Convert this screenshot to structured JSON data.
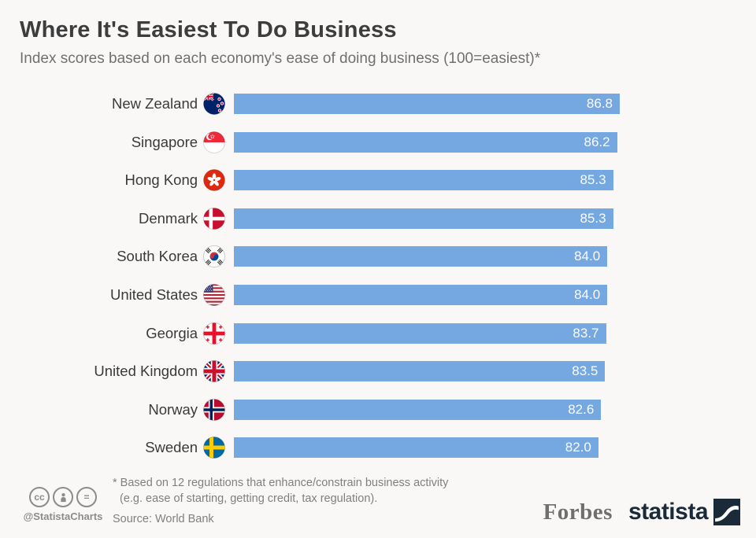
{
  "header": {
    "title": "Where It's Easiest To Do Business",
    "subtitle": "Index scores based on each economy's ease of doing business (100=easiest)*"
  },
  "chart_data": {
    "type": "bar",
    "orientation": "horizontal",
    "title": "Where It's Easiest To Do Business",
    "xlabel": "",
    "ylabel": "",
    "categories": [
      "New Zealand",
      "Singapore",
      "Hong Kong",
      "Denmark",
      "South Korea",
      "United States",
      "Georgia",
      "United Kingdom",
      "Norway",
      "Sweden"
    ],
    "values": [
      86.8,
      86.2,
      85.3,
      85.3,
      84.0,
      84.0,
      83.7,
      83.5,
      82.6,
      82.0
    ],
    "value_labels": [
      "86.8",
      "86.2",
      "85.3",
      "85.3",
      "84.0",
      "84.0",
      "83.7",
      "83.5",
      "82.6",
      "82.0"
    ],
    "flag_icons": [
      "new-zealand-flag",
      "singapore-flag",
      "hong-kong-flag",
      "denmark-flag",
      "south-korea-flag",
      "united-states-flag",
      "georgia-flag",
      "united-kingdom-flag",
      "norway-flag",
      "sweden-flag"
    ],
    "xlim": [
      0,
      86.8
    ],
    "grid": false,
    "legend": false,
    "bar_color": "#75a8e1",
    "value_label_color": "#fafbfd"
  },
  "footer": {
    "note_line1": "* Based on 12 regulations that enhance/constrain business activity",
    "note_line2": "(e.g. ease of starting, getting credit, tax regulation).",
    "source": "Source: World Bank",
    "credit_handle": "@StatistaCharts",
    "license_icons": [
      "cc-icon",
      "attribution-person-icon",
      "equals-icon"
    ],
    "brand_left": "Forbes",
    "brand_right": "statista"
  }
}
